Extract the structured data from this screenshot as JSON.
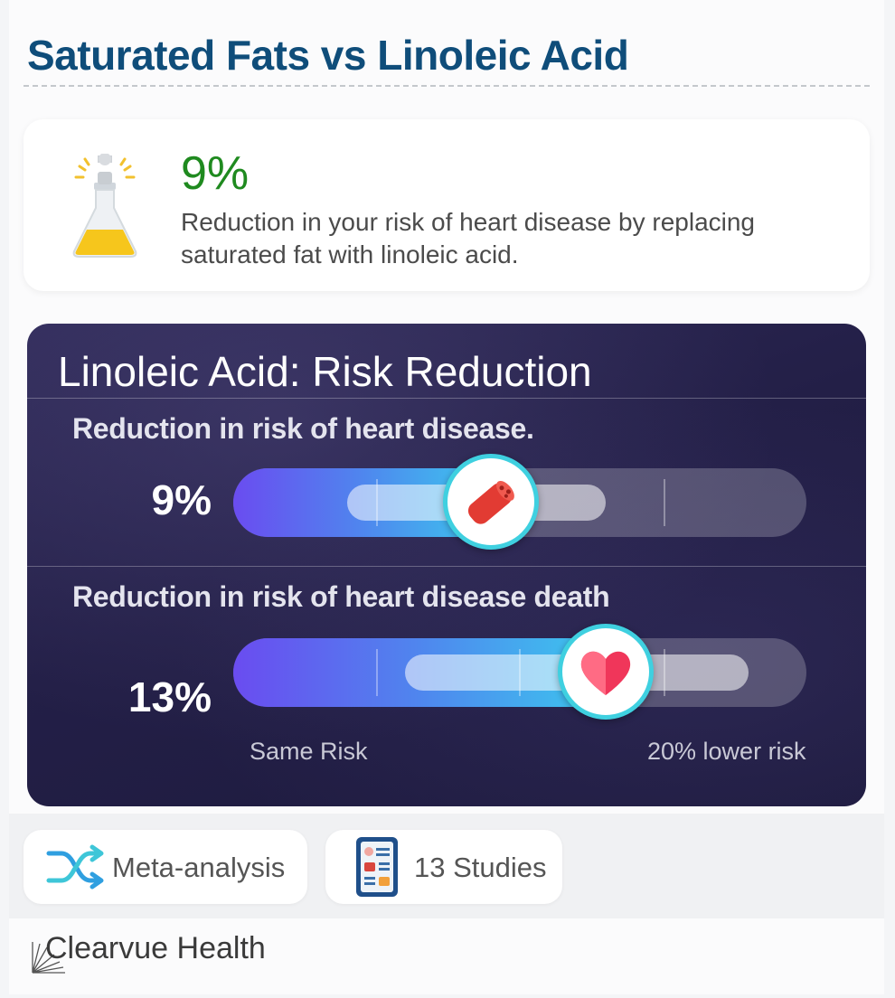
{
  "header": {
    "title": "Saturated Fats vs Linoleic Acid"
  },
  "summary": {
    "value": "9%",
    "description": "Reduction in your risk of heart disease by replacing saturated fat with linoleic acid.",
    "icon": "flask-icon"
  },
  "panel": {
    "title": "Linoleic Acid: Risk Reduction",
    "metrics": [
      {
        "label": "Reduction in risk of heart disease.",
        "value": "9%",
        "icon": "artery-icon",
        "fraction": 0.45
      },
      {
        "label": "Reduction in risk of heart disease death",
        "value": "13%",
        "icon": "heart-icon",
        "fraction": 0.65
      }
    ],
    "scale": {
      "min_label": "Same Risk",
      "max_label": "20% lower risk"
    }
  },
  "badges": [
    {
      "label": "Meta-analysis",
      "icon": "shuffle-icon"
    },
    {
      "label": "13 Studies",
      "icon": "report-icon"
    }
  ],
  "brand": {
    "name": "Clearvue Health"
  },
  "colors": {
    "title": "#0f4d7a",
    "accent_green": "#1f8a1f",
    "panel_bg": "#231f47",
    "marker_ring": "#3fd0e0"
  }
}
